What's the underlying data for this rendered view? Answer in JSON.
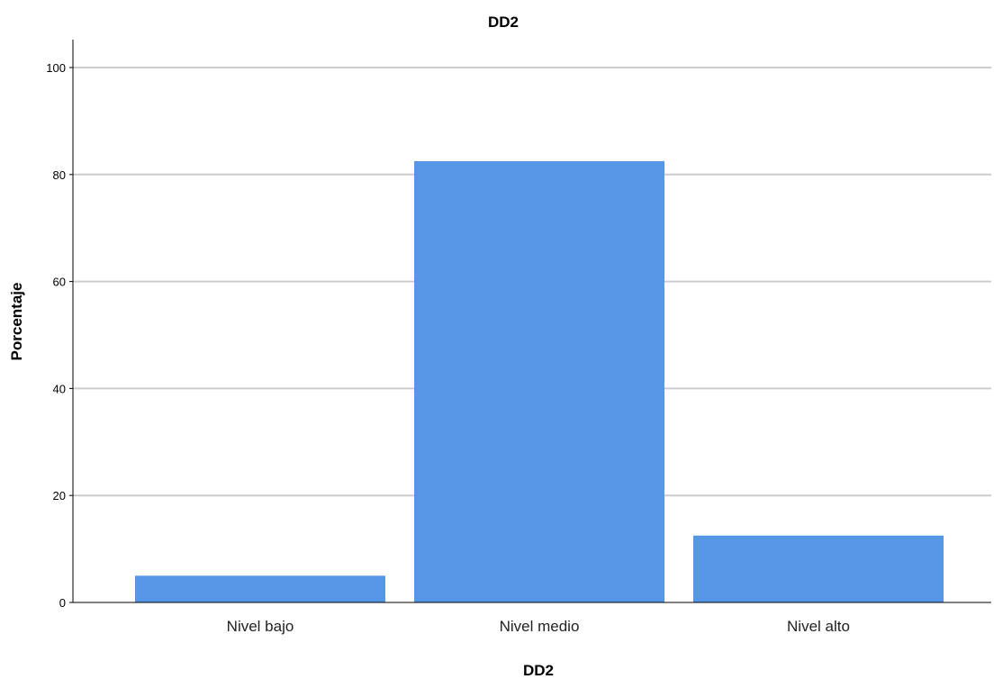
{
  "chart_data": {
    "type": "bar",
    "title": "DD2",
    "xlabel": "DD2",
    "ylabel": "Porcentaje",
    "categories": [
      "Nivel bajo",
      "Nivel medio",
      "Nivel alto"
    ],
    "values": [
      5.0,
      82.5,
      12.5
    ],
    "ylim": [
      0,
      100
    ],
    "yticks": [
      "0",
      "20",
      "40",
      "60",
      "80",
      "100"
    ],
    "grid": "horizontal",
    "bar_color": "#5596e6",
    "grid_color": "#cccccc"
  }
}
